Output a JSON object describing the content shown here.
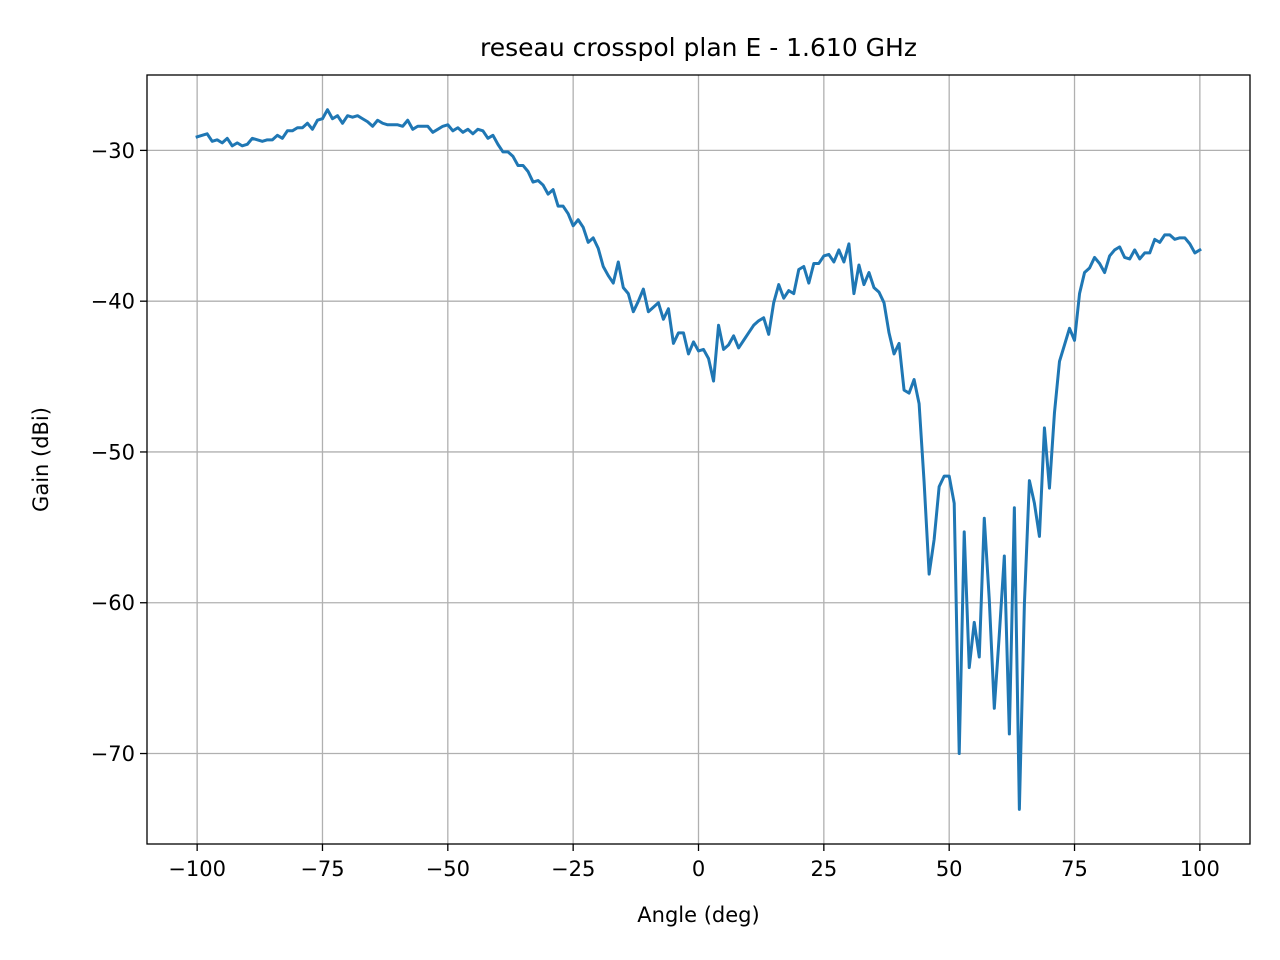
{
  "chart_data": {
    "type": "line",
    "title": "reseau crosspol plan E - 1.610 GHz",
    "xlabel": "Angle (deg)",
    "ylabel": "Gain (dBi)",
    "xlim": [
      -110,
      110
    ],
    "ylim": [
      -76,
      -25
    ],
    "grid": true,
    "xticks": [
      -100,
      -75,
      -50,
      -25,
      0,
      25,
      50,
      75,
      100
    ],
    "xtick_labels": [
      "−100",
      "−75",
      "−50",
      "−25",
      "0",
      "25",
      "50",
      "75",
      "100"
    ],
    "yticks": [
      -30,
      -40,
      -50,
      -60,
      -70
    ],
    "ytick_labels": [
      "−30",
      "−40",
      "−50",
      "−60",
      "−70"
    ],
    "series": [
      {
        "color": "#1f77b4",
        "x": [
          -100,
          -99,
          -98,
          -97,
          -96,
          -95,
          -94,
          -93,
          -92,
          -91,
          -90,
          -89,
          -88,
          -87,
          -86,
          -85,
          -84,
          -83,
          -82,
          -81,
          -80,
          -79,
          -78,
          -77,
          -76,
          -75,
          -74,
          -73,
          -72,
          -71,
          -70,
          -69,
          -68,
          -67,
          -66,
          -65,
          -64,
          -63,
          -62,
          -61,
          -60,
          -59,
          -58,
          -57,
          -56,
          -55,
          -54,
          -53,
          -52,
          -51,
          -50,
          -49,
          -48,
          -47,
          -46,
          -45,
          -44,
          -43,
          -42,
          -41,
          -40,
          -39,
          -38,
          -37,
          -36,
          -35,
          -34,
          -33,
          -32,
          -31,
          -30,
          -29,
          -28,
          -27,
          -26,
          -25,
          -24,
          -23,
          -22,
          -21,
          -20,
          -19,
          -18,
          -17,
          -16,
          -15,
          -14,
          -13,
          -12,
          -11,
          -10,
          -9,
          -8,
          -7,
          -6,
          -5,
          -4,
          -3,
          -2,
          -1,
          0,
          1,
          2,
          3,
          4,
          5,
          6,
          7,
          8,
          9,
          10,
          11,
          12,
          13,
          14,
          15,
          16,
          17,
          18,
          19,
          20,
          21,
          22,
          23,
          24,
          25,
          26,
          27,
          28,
          29,
          30,
          31,
          32,
          33,
          34,
          35,
          36,
          37,
          38,
          39,
          40,
          41,
          42,
          43,
          44,
          45,
          46,
          47,
          48,
          49,
          50,
          51,
          52,
          53,
          54,
          55,
          56,
          57,
          58,
          59,
          60,
          61,
          62,
          63,
          64,
          65,
          66,
          67,
          68,
          69,
          70,
          71,
          72,
          73,
          74,
          75,
          76,
          77,
          78,
          79,
          80,
          81,
          82,
          83,
          84,
          85,
          86,
          87,
          88,
          89,
          90,
          91,
          92,
          93,
          94,
          95,
          96,
          97,
          98,
          99,
          100
        ],
        "y": [
          -29.1,
          -29.0,
          -28.9,
          -29.4,
          -29.3,
          -29.5,
          -29.2,
          -29.7,
          -29.5,
          -29.7,
          -29.6,
          -29.2,
          -29.3,
          -29.4,
          -29.3,
          -29.3,
          -29.0,
          -29.2,
          -28.7,
          -28.7,
          -28.5,
          -28.5,
          -28.2,
          -28.6,
          -28.0,
          -27.9,
          -27.3,
          -27.9,
          -27.7,
          -28.2,
          -27.7,
          -27.8,
          -27.7,
          -27.9,
          -28.1,
          -28.4,
          -28.0,
          -28.2,
          -28.3,
          -28.3,
          -28.3,
          -28.4,
          -28.0,
          -28.6,
          -28.4,
          -28.4,
          -28.4,
          -28.8,
          -28.6,
          -28.4,
          -28.3,
          -28.7,
          -28.5,
          -28.8,
          -28.6,
          -28.9,
          -28.6,
          -28.7,
          -29.2,
          -29.0,
          -29.6,
          -30.1,
          -30.1,
          -30.4,
          -31.0,
          -31.0,
          -31.4,
          -32.1,
          -32.0,
          -32.3,
          -32.9,
          -32.6,
          -33.7,
          -33.7,
          -34.2,
          -35.0,
          -34.6,
          -35.1,
          -36.1,
          -35.8,
          -36.5,
          -37.7,
          -38.3,
          -38.8,
          -37.4,
          -39.1,
          -39.5,
          -40.7,
          -40.0,
          -39.2,
          -40.7,
          -40.4,
          -40.1,
          -41.2,
          -40.5,
          -42.8,
          -42.1,
          -42.1,
          -43.5,
          -42.7,
          -43.3,
          -43.2,
          -43.8,
          -45.3,
          -41.6,
          -43.2,
          -42.9,
          -42.3,
          -43.1,
          -42.6,
          -42.1,
          -41.6,
          -41.3,
          -41.1,
          -42.2,
          -40.1,
          -38.9,
          -39.8,
          -39.3,
          -39.5,
          -37.9,
          -37.7,
          -38.8,
          -37.5,
          -37.5,
          -37.0,
          -36.9,
          -37.4,
          -36.6,
          -37.4,
          -36.2,
          -39.5,
          -37.6,
          -38.9,
          -38.1,
          -39.1,
          -39.4,
          -40.1,
          -42.1,
          -43.5,
          -42.8,
          -45.9,
          -46.1,
          -45.2,
          -46.8,
          -52.0,
          -58.1,
          -55.8,
          -52.3,
          -51.6,
          -51.6,
          -53.4,
          -70.0,
          -55.3,
          -64.3,
          -61.3,
          -63.6,
          -54.4,
          -59.8,
          -67.0,
          -62.1,
          -56.9,
          -68.7,
          -53.7,
          -73.7,
          -60.1,
          -51.9,
          -53.4,
          -55.6,
          -48.4,
          -52.4,
          -47.4,
          -44.0,
          -42.9,
          -41.8,
          -42.6,
          -39.5,
          -38.1,
          -37.8,
          -37.1,
          -37.5,
          -38.1,
          -37.0,
          -36.6,
          -36.4,
          -37.1,
          -37.2,
          -36.6,
          -37.2,
          -36.8,
          -36.8,
          -35.9,
          -36.1,
          -35.6,
          -35.6,
          -35.9,
          -35.8,
          -35.8,
          -36.2,
          -36.8,
          -36.6
        ]
      }
    ]
  }
}
